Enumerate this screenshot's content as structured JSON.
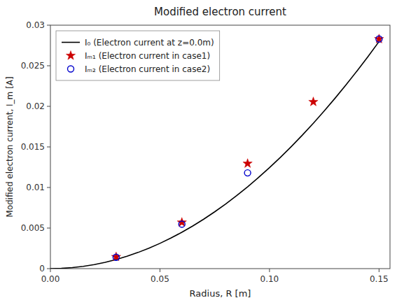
{
  "chart_data": {
    "type": "line",
    "title": "Modified electron current",
    "x_label": "Radius, R [m]",
    "y_label": "Modified electron current, I_m [A]",
    "xlim": [
      0,
      0.155
    ],
    "ylim": [
      0,
      0.03
    ],
    "xticks": [
      {
        "value": 0,
        "label": "0.00"
      },
      0.05,
      {
        "value": 0.1,
        "label": "0.10"
      },
      0.15
    ],
    "yticks": [
      0,
      0.005,
      0.01,
      0.015,
      0.02,
      0.025,
      0.03
    ],
    "grid": false,
    "legend": "upper left",
    "series": [
      {
        "name": "I₀ (Electron current at z=0.0m)",
        "type": "line",
        "color": "#000000",
        "line_style": "solid",
        "x": [
          0.0,
          0.005,
          0.01,
          0.015,
          0.02,
          0.025,
          0.03,
          0.035,
          0.04,
          0.045,
          0.05,
          0.055,
          0.06,
          0.065,
          0.07,
          0.075,
          0.08,
          0.085,
          0.09,
          0.095,
          0.1,
          0.105,
          0.11,
          0.115,
          0.12,
          0.125,
          0.13,
          0.135,
          0.14,
          0.145,
          0.15
        ],
        "values": [
          0.0,
          3.1e-05,
          0.000124,
          0.00028,
          0.000498,
          0.000778,
          0.001122,
          0.001528,
          0.001994,
          0.002524,
          0.003115,
          0.003768,
          0.004484,
          0.005262,
          0.006102,
          0.007003,
          0.007968,
          0.008993,
          0.010082,
          0.011232,
          0.012445,
          0.013718,
          0.015056,
          0.016454,
          0.017916,
          0.019439,
          0.021024,
          0.02267,
          0.024381,
          0.026151,
          0.027986
        ]
      },
      {
        "name": "Iₘ₁ (Electron current in case1)",
        "type": "scatter",
        "color": "#cc0000",
        "marker": "star",
        "x": [
          0.03,
          0.06,
          0.09,
          0.12,
          0.15
        ],
        "values": [
          0.00145,
          0.0057,
          0.01295,
          0.02055,
          0.0283
        ]
      },
      {
        "name": "Iₘ₂ (Electron current in case2)",
        "type": "scatter",
        "color": "#0000cc",
        "marker": "circle-open",
        "x": [
          0.03,
          0.06,
          0.09,
          0.15
        ],
        "values": [
          0.0014,
          0.00548,
          0.0118,
          0.0283
        ]
      }
    ]
  }
}
